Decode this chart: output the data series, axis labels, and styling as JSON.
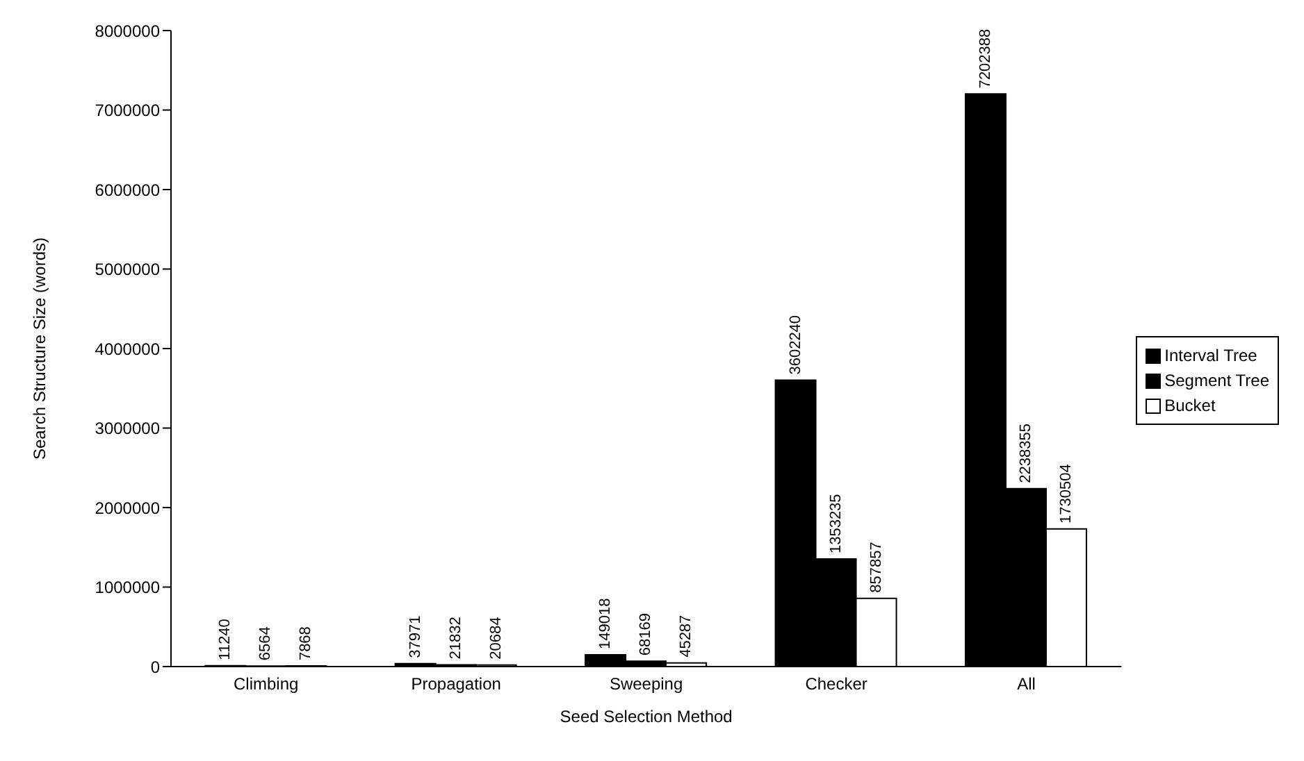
{
  "chart_data": {
    "type": "bar",
    "xlabel": "Seed Selection Method",
    "ylabel": "Search Structure Size (words)",
    "categories": [
      "Climbing",
      "Propagation",
      "Sweeping",
      "Checker",
      "All"
    ],
    "series": [
      {
        "name": "Interval Tree",
        "color": "#000000",
        "values": [
          11240,
          37971,
          149018,
          3602240,
          7202388
        ]
      },
      {
        "name": "Segment Tree",
        "color": "#000000",
        "values": [
          6564,
          21832,
          68169,
          1353235,
          2238355
        ]
      },
      {
        "name": "Bucket",
        "color": "#ffffff",
        "values": [
          7868,
          20684,
          45287,
          857857,
          1730504
        ]
      }
    ],
    "ylim": [
      0,
      8000000
    ],
    "yticks": [
      0,
      1000000,
      2000000,
      3000000,
      4000000,
      5000000,
      6000000,
      7000000,
      8000000
    ],
    "grid": false,
    "legend": "right",
    "data_labels": true
  }
}
